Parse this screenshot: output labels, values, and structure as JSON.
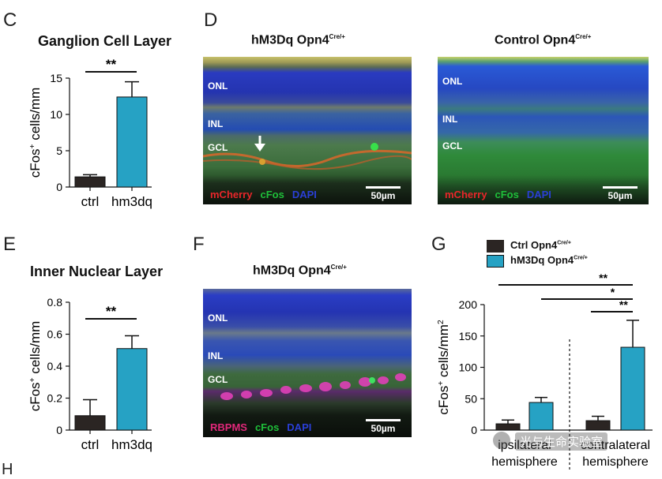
{
  "panels": {
    "c": {
      "letter": "C",
      "title": "Ganglion Cell Layer"
    },
    "d": {
      "letter": "D",
      "left_title": "hM3Dq Opn4",
      "right_title": "Control Opn4",
      "cre_sup": "Cre/+"
    },
    "e": {
      "letter": "E",
      "title": "Inner Nuclear Layer"
    },
    "f": {
      "letter": "F",
      "title": "hM3Dq Opn4",
      "cre_sup": "Cre/+"
    },
    "g": {
      "letter": "G"
    },
    "h": {
      "letter": "H"
    }
  },
  "layers": {
    "onl": "ONL",
    "inl": "INL",
    "gcl": "GCL"
  },
  "stains": {
    "mcherry": "mCherry",
    "cfos": "cFos",
    "dapi": "DAPI",
    "rbpms": "RBPMS"
  },
  "scale_bar": "50µm",
  "colors": {
    "ctrl": "#2b2523",
    "hm3dq": "#26a2c4",
    "mcherry": "#e8262a",
    "cfos": "#1fbf3a",
    "dapi": "#2a3fd6",
    "rbpms": "#e0287a"
  },
  "legend": {
    "ctrl": "Ctrl Opn4",
    "hm3dq": "hM3Dq Opn4",
    "sup": "Cre/+"
  },
  "watermark": "光与生命实验室",
  "chart_data": [
    {
      "panel": "C",
      "type": "bar",
      "title": "Ganglion Cell Layer",
      "categories": [
        "ctrl",
        "hm3dq"
      ],
      "values": [
        1.4,
        12.4
      ],
      "errors": [
        0.3,
        2.1
      ],
      "ylabel_main": "cFos",
      "ylabel_sup": "+",
      "ylabel_rest": " cells/mm",
      "ylim": [
        0,
        15
      ],
      "yticks": [
        0,
        5,
        10,
        15
      ],
      "significance": "**"
    },
    {
      "panel": "E",
      "type": "bar",
      "title": "Inner Nuclear Layer",
      "categories": [
        "ctrl",
        "hm3dq"
      ],
      "values": [
        0.09,
        0.51
      ],
      "errors": [
        0.1,
        0.08
      ],
      "ylabel_main": "cFos",
      "ylabel_sup": "+",
      "ylabel_rest": " cells/mm",
      "ylim": [
        0,
        0.8
      ],
      "yticks": [
        "0",
        "0.2",
        "0.4",
        "0.6",
        "0.8"
      ],
      "significance": "**"
    },
    {
      "panel": "G",
      "type": "bar",
      "groups": [
        {
          "label1": "ipsilateral",
          "label2": "hemisphere"
        },
        {
          "label1": "contralateral",
          "label2": "hemisphere"
        }
      ],
      "series": [
        {
          "name": "Ctrl Opn4 Cre/+",
          "values": [
            10,
            15
          ],
          "errors": [
            6,
            7
          ]
        },
        {
          "name": "hM3Dq Opn4 Cre/+",
          "values": [
            44,
            132
          ],
          "errors": [
            8,
            43
          ]
        }
      ],
      "ylabel_main": "cFos",
      "ylabel_sup": "+",
      "ylabel_rest": " cells/mm",
      "ylabel_sup2": "2",
      "ylim": [
        0,
        200
      ],
      "yticks": [
        0,
        50,
        100,
        150,
        200
      ],
      "significance": [
        "**",
        "*",
        "**"
      ]
    }
  ]
}
